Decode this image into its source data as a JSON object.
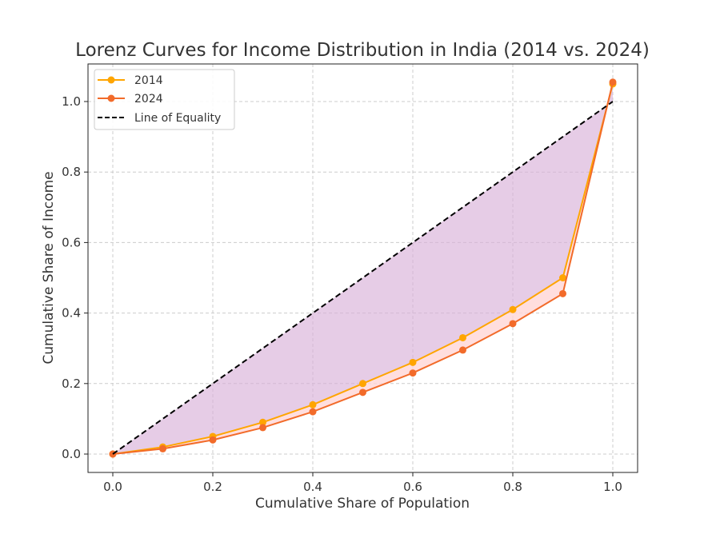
{
  "chart_data": {
    "type": "line",
    "title": "Lorenz Curves for Income Distribution in India (2014 vs. 2024)",
    "xlabel": "Cumulative Share of Population",
    "ylabel": "Cumulative Share of Income",
    "xlim": [
      -0.05,
      1.05
    ],
    "ylim": [
      -0.05,
      1.11
    ],
    "xticks": [
      "0.0",
      "0.2",
      "0.4",
      "0.6",
      "0.8",
      "1.0"
    ],
    "yticks": [
      "0.0",
      "0.2",
      "0.4",
      "0.6",
      "0.8",
      "1.0"
    ],
    "grid": true,
    "legend_position": "top-left",
    "x": [
      0,
      0.1,
      0.2,
      0.3,
      0.4,
      0.5,
      0.6,
      0.7,
      0.8,
      0.9,
      1.0
    ],
    "series": [
      {
        "name": "2014",
        "color": "#FFA500",
        "values": [
          0,
          0.02,
          0.05,
          0.09,
          0.14,
          0.2,
          0.26,
          0.33,
          0.41,
          0.5,
          1.05
        ]
      },
      {
        "name": "2024",
        "color": "#F26B2A",
        "values": [
          0,
          0.015,
          0.04,
          0.075,
          0.12,
          0.175,
          0.23,
          0.295,
          0.37,
          0.455,
          1.055
        ]
      }
    ],
    "equality": {
      "name": "Line of Equality",
      "color": "#000000",
      "x": [
        0,
        1
      ],
      "y": [
        0,
        1
      ]
    },
    "fills": {
      "equality_to_2014": "#D8B0D8",
      "between_2014_2024": "#FFD6D6"
    }
  }
}
